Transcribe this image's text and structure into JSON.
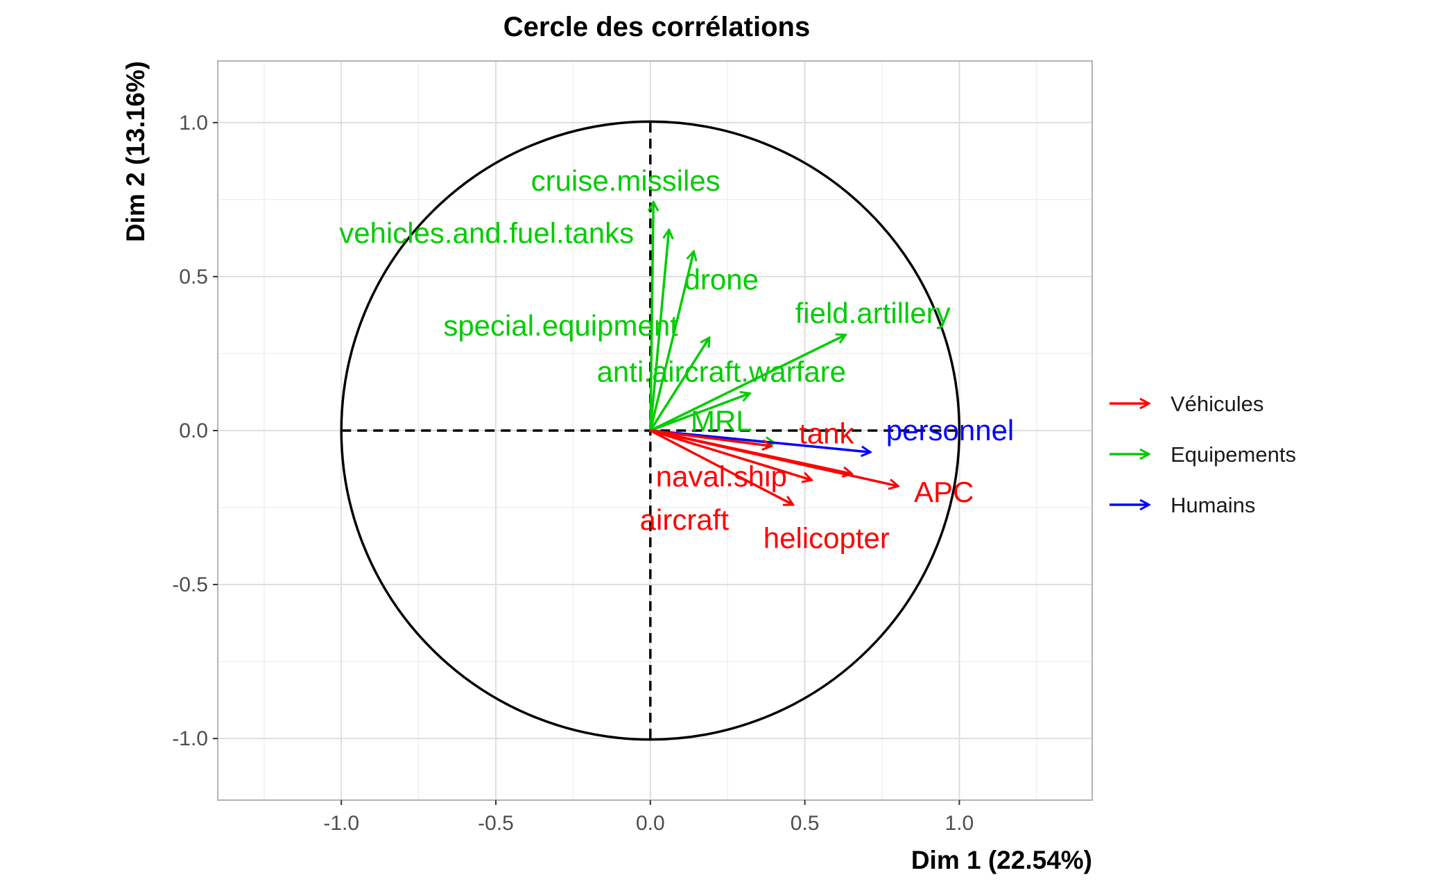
{
  "chart_data": {
    "type": "scatter",
    "title": "Cercle des corrélations",
    "xlabel": "Dim 1 (22.54%)",
    "ylabel": "Dim 2 (13.16%)",
    "xlim": [
      -1.4,
      1.43
    ],
    "ylim": [
      -1.2,
      1.2
    ],
    "x_ticks": [
      "-1.0",
      "-0.5",
      "0.0",
      "0.5",
      "1.0"
    ],
    "y_ticks": [
      "-1.0",
      "-0.5",
      "0.0",
      "0.5",
      "1.0"
    ],
    "grid": true,
    "legend_placement": "right",
    "legend": [
      {
        "name": "Véhicules",
        "color": "#ff0000"
      },
      {
        "name": "Equipements",
        "color": "#00cc00"
      },
      {
        "name": "Humains",
        "color": "#0000ff"
      }
    ],
    "variables": [
      {
        "name": "cruise.missiles",
        "group": "Equipements",
        "x": 0.01,
        "y": 0.74,
        "label_x": -0.08,
        "label_y": 0.81
      },
      {
        "name": "vehicles.and.fuel.tanks",
        "group": "Equipements",
        "x": 0.06,
        "y": 0.65,
        "label_x": -0.53,
        "label_y": 0.64
      },
      {
        "name": "drone",
        "group": "Equipements",
        "x": 0.14,
        "y": 0.58,
        "label_x": 0.23,
        "label_y": 0.49
      },
      {
        "name": "special.equipment",
        "group": "Equipements",
        "x": 0.19,
        "y": 0.3,
        "label_x": -0.29,
        "label_y": 0.34
      },
      {
        "name": "field.artillery",
        "group": "Equipements",
        "x": 0.63,
        "y": 0.31,
        "label_x": 0.72,
        "label_y": 0.38
      },
      {
        "name": "anti.aircraft.warfare",
        "group": "Equipements",
        "x": 0.32,
        "y": 0.12,
        "label_x": 0.23,
        "label_y": 0.19
      },
      {
        "name": "MRL",
        "group": "Equipements",
        "x": 0.4,
        "y": -0.04,
        "label_x": 0.23,
        "label_y": 0.03
      },
      {
        "name": "personnel",
        "group": "Humains",
        "x": 0.71,
        "y": -0.07,
        "label_x": 0.97,
        "label_y": 0.0
      },
      {
        "name": "tank",
        "group": "Véhicules",
        "x": 0.65,
        "y": -0.14,
        "label_x": 0.57,
        "label_y": -0.01
      },
      {
        "name": "APC",
        "group": "Véhicules",
        "x": 0.8,
        "y": -0.18,
        "label_x": 0.95,
        "label_y": -0.2
      },
      {
        "name": "naval.ship",
        "group": "Véhicules",
        "x": 0.39,
        "y": -0.05,
        "label_x": 0.23,
        "label_y": -0.15
      },
      {
        "name": "aircraft",
        "group": "Véhicules",
        "x": 0.46,
        "y": -0.24,
        "label_x": 0.11,
        "label_y": -0.29
      },
      {
        "name": "helicopter",
        "group": "Véhicules",
        "x": 0.52,
        "y": -0.16,
        "label_x": 0.57,
        "label_y": -0.35
      }
    ]
  }
}
